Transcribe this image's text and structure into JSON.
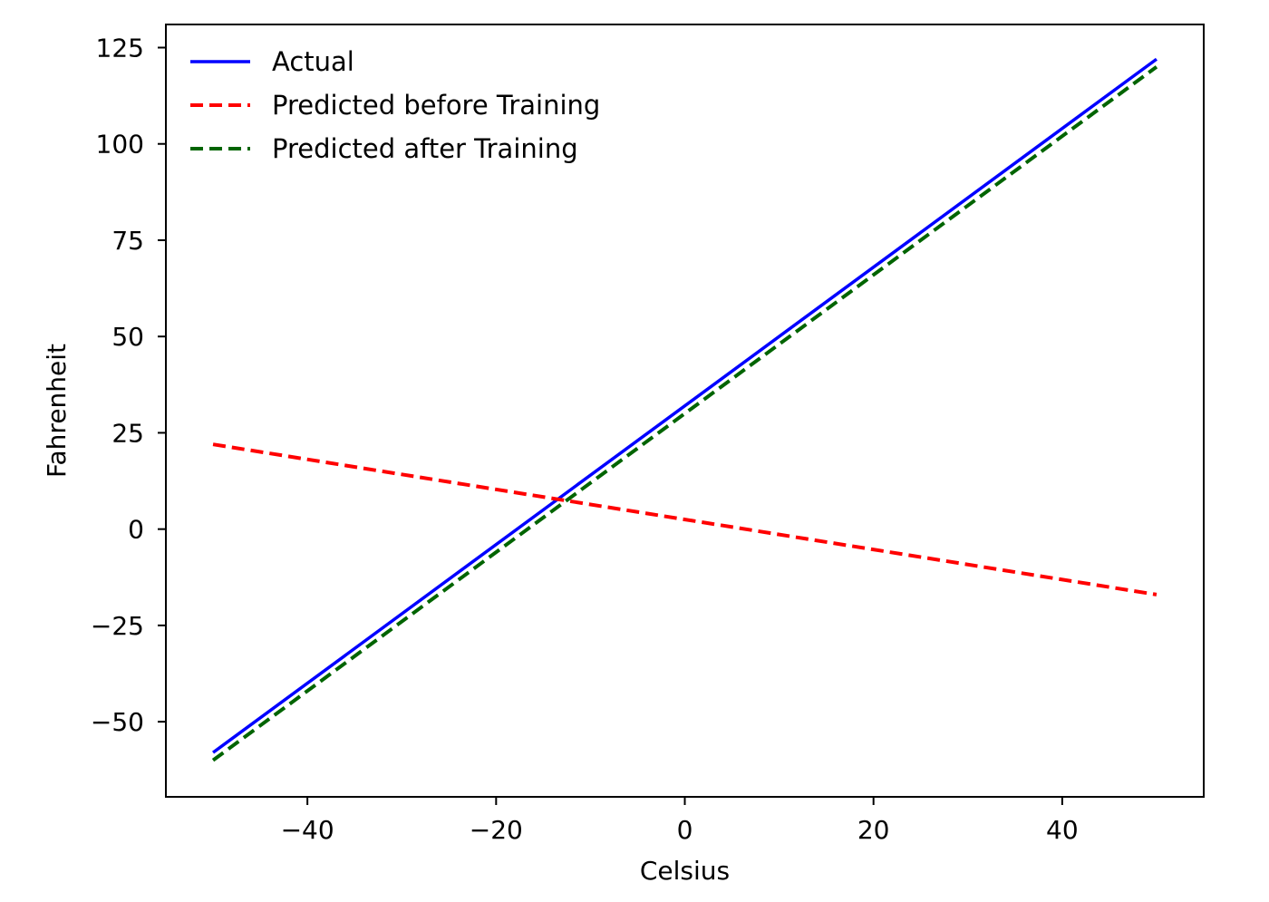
{
  "chart_data": {
    "type": "line",
    "title": "",
    "xlabel": "Celsius",
    "ylabel": "Fahrenheit",
    "xlim": [
      -55,
      55
    ],
    "ylim": [
      -69.5,
      131
    ],
    "xticks": [
      -40,
      -20,
      0,
      20,
      40
    ],
    "xtick_labels": [
      "−40",
      "−20",
      "0",
      "20",
      "40"
    ],
    "yticks": [
      -50,
      -25,
      0,
      25,
      50,
      75,
      100,
      125
    ],
    "ytick_labels": [
      "−50",
      "−25",
      "0",
      "25",
      "50",
      "75",
      "100",
      "125"
    ],
    "grid": false,
    "legend_position": "upper-left",
    "series": [
      {
        "name": "Actual",
        "color": "#0000ff",
        "style": "solid",
        "x": [
          -50,
          50
        ],
        "y": [
          -58,
          122
        ]
      },
      {
        "name": "Predicted before Training",
        "color": "#ff0000",
        "style": "dashed",
        "x": [
          -50,
          50
        ],
        "y": [
          22,
          -17
        ]
      },
      {
        "name": "Predicted after Training",
        "color": "#006400",
        "style": "dashed",
        "x": [
          -50,
          50
        ],
        "y": [
          -60,
          120
        ]
      }
    ]
  }
}
